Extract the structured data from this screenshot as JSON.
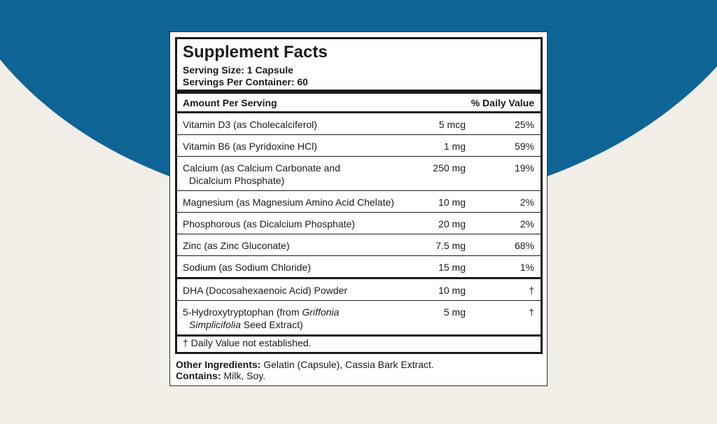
{
  "label": {
    "title": "Supplement Facts",
    "serving_size": "Serving Size: 1 Capsule",
    "servings_per_container": "Servings Per Container: 60",
    "header": {
      "amount": "Amount Per Serving",
      "daily_value": "% Daily Value"
    },
    "sections": [
      [
        {
          "name": [
            [
              "Vitamin D3 (as Cholecalciferol)"
            ]
          ],
          "amount": "5 mcg",
          "dv": "25%"
        },
        {
          "name": [
            [
              "Vitamin B6 (as Pyridoxine HCl)"
            ]
          ],
          "amount": "1 mg",
          "dv": "59%"
        },
        {
          "name": [
            [
              "Calcium (as Calcium Carbonate and"
            ],
            [
              "Dicalcium Phosphate)"
            ]
          ],
          "amount": "250 mg",
          "dv": "19%"
        },
        {
          "name": [
            [
              "Magnesium (as Magnesium Amino Acid Chelate)"
            ]
          ],
          "amount": "10 mg",
          "dv": "2%"
        },
        {
          "name": [
            [
              "Phosphorous (as Dicalcium Phosphate)"
            ]
          ],
          "amount": "20 mg",
          "dv": "2%"
        },
        {
          "name": [
            [
              "Zinc (as Zinc Gluconate)"
            ]
          ],
          "amount": "7.5 mg",
          "dv": "68%"
        },
        {
          "name": [
            [
              "Sodium (as Sodium Chloride)"
            ]
          ],
          "amount": "15 mg",
          "dv": "1%"
        }
      ],
      [
        {
          "name": [
            [
              "DHA (Docosahexaenoic Acid) Powder"
            ]
          ],
          "amount": "10 mg",
          "dv": "†"
        },
        {
          "name": [
            [
              "5-Hydroxytryptophan (from ",
              {
                "text": "Griffonia",
                "italic": true
              }
            ],
            [
              {
                "text": "Simplicifolia",
                "italic": true
              },
              " Seed Extract)"
            ]
          ],
          "amount": "5 mg",
          "dv": "†"
        }
      ]
    ],
    "footnote": "† Daily Value not established.",
    "other_ingredients": {
      "label": "Other Ingredients:",
      "text": " Gelatin (Capsule), Cassia Bark Extract."
    },
    "contains": {
      "label": "Contains:",
      "text": " Milk, Soy."
    }
  }
}
